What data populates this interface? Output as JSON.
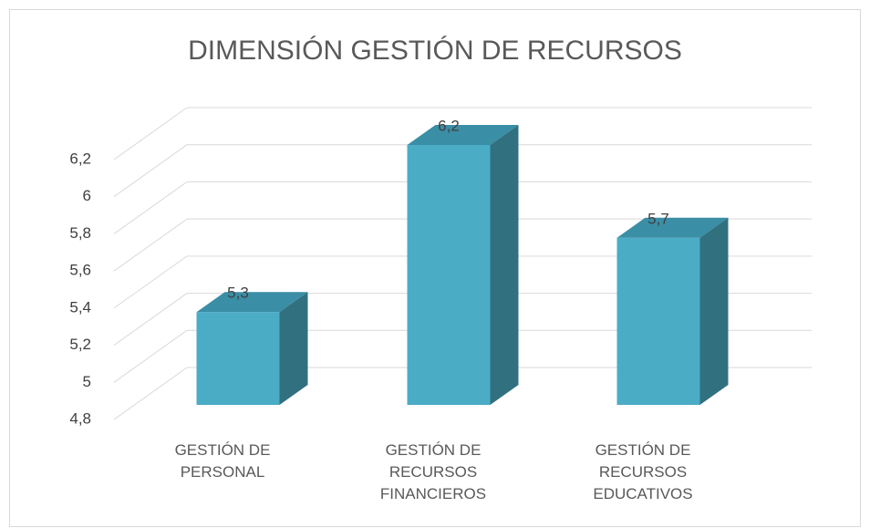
{
  "chart_data": {
    "type": "bar3d",
    "title": "DIMENSIÓN GESTIÓN DE RECURSOS",
    "categories": [
      "GESTIÓN DE PERSONAL",
      "GESTIÓN DE RECURSOS FINANCIEROS",
      "GESTIÓN DE RECURSOS EDUCATIVOS"
    ],
    "values": [
      5.3,
      6.2,
      5.7
    ],
    "value_labels": [
      "5,3",
      "6,2",
      "5,7"
    ],
    "color": "#4bacc6",
    "ylim": [
      4.8,
      6.2
    ],
    "yticks": [
      {
        "value": 4.8,
        "label": "4,8"
      },
      5,
      {
        "value": 5.2,
        "label": "5,2"
      },
      {
        "value": 5.4,
        "label": "5,4"
      },
      {
        "value": 5.6,
        "label": "5,6"
      },
      {
        "value": 5.8,
        "label": "5,8"
      },
      6,
      {
        "value": 6.2,
        "label": "6,2"
      }
    ],
    "grid": true
  }
}
